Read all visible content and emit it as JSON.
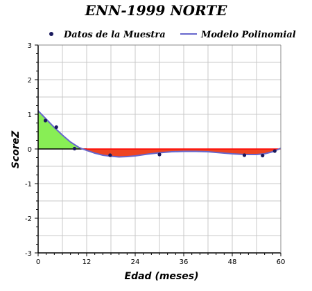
{
  "chart_data": {
    "type": "scatter",
    "title": "ENN-1999 NORTE",
    "xlabel": "Edad (meses)",
    "ylabel": "ScoreZ",
    "xlim": [
      0,
      60
    ],
    "ylim": [
      -3,
      3
    ],
    "x_ticks": [
      "0",
      "12",
      "24",
      "36",
      "48",
      "60"
    ],
    "y_ticks": [
      "3",
      "2",
      "1",
      "0",
      "-1",
      "-2",
      "-3"
    ],
    "grid": true,
    "legend_position": "top",
    "series": [
      {
        "name": "Datos de la Muestra",
        "kind": "points",
        "color": "#1a1a5e",
        "points": [
          {
            "x": 1.8,
            "y": 0.82
          },
          {
            "x": 4.5,
            "y": 0.63
          },
          {
            "x": 9.0,
            "y": 0.01
          },
          {
            "x": 17.8,
            "y": -0.18
          },
          {
            "x": 30.0,
            "y": -0.16
          },
          {
            "x": 51.0,
            "y": -0.18
          },
          {
            "x": 55.5,
            "y": -0.19
          },
          {
            "x": 58.5,
            "y": -0.06
          }
        ]
      },
      {
        "name": "Modelo Polinomial",
        "kind": "line",
        "color": "#6666cc",
        "points": [
          {
            "x": 0,
            "y": 1.1
          },
          {
            "x": 2,
            "y": 0.86
          },
          {
            "x": 4,
            "y": 0.62
          },
          {
            "x": 6,
            "y": 0.4
          },
          {
            "x": 8,
            "y": 0.2
          },
          {
            "x": 10,
            "y": 0.05
          },
          {
            "x": 11,
            "y": 0.0
          },
          {
            "x": 12,
            "y": -0.04
          },
          {
            "x": 14,
            "y": -0.12
          },
          {
            "x": 16,
            "y": -0.18
          },
          {
            "x": 18,
            "y": -0.21
          },
          {
            "x": 20,
            "y": -0.23
          },
          {
            "x": 22,
            "y": -0.22
          },
          {
            "x": 24,
            "y": -0.2
          },
          {
            "x": 27,
            "y": -0.15
          },
          {
            "x": 30,
            "y": -0.11
          },
          {
            "x": 33,
            "y": -0.08
          },
          {
            "x": 36,
            "y": -0.07
          },
          {
            "x": 39,
            "y": -0.07
          },
          {
            "x": 42,
            "y": -0.08
          },
          {
            "x": 45,
            "y": -0.11
          },
          {
            "x": 48,
            "y": -0.14
          },
          {
            "x": 51,
            "y": -0.16
          },
          {
            "x": 54,
            "y": -0.16
          },
          {
            "x": 56,
            "y": -0.14
          },
          {
            "x": 58,
            "y": -0.08
          },
          {
            "x": 59,
            "y": -0.03
          },
          {
            "x": 60,
            "y": 0.02
          }
        ]
      }
    ],
    "fill_colors": {
      "positive": "#88ee55",
      "negative": "#ee4422",
      "zero_line": "#ff0000"
    }
  }
}
